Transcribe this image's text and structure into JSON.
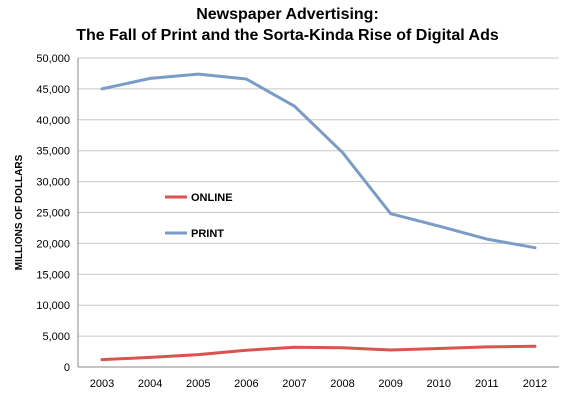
{
  "chart_data": {
    "type": "line",
    "title": "Newspaper Advertising:",
    "subtitle": "The Fall of Print and the Sorta-Kinda Rise of Digital Ads",
    "xlabel": "",
    "ylabel": "MILLIONS OF DOLLARS",
    "categories": [
      "2003",
      "2004",
      "2005",
      "2006",
      "2007",
      "2008",
      "2009",
      "2010",
      "2011",
      "2012"
    ],
    "ylim": [
      0,
      50000
    ],
    "yticks": [
      "0",
      "5,000",
      "10,000",
      "15,000",
      "20,000",
      "25,000",
      "30,000",
      "35,000",
      "40,000",
      "45,000",
      "50,000"
    ],
    "grid": true,
    "legend_position": "center-left",
    "series": [
      {
        "name": "Online",
        "legend_label": "ONLINE",
        "color": "#d9534f",
        "values": [
          1200,
          1550,
          2000,
          2700,
          3200,
          3100,
          2750,
          3000,
          3250,
          3350
        ]
      },
      {
        "name": "Print",
        "legend_label": "PRINT",
        "color": "#7a9cc6",
        "values": [
          45000,
          46700,
          47400,
          46600,
          42200,
          34700,
          24800,
          22800,
          20700,
          19300
        ]
      }
    ]
  }
}
